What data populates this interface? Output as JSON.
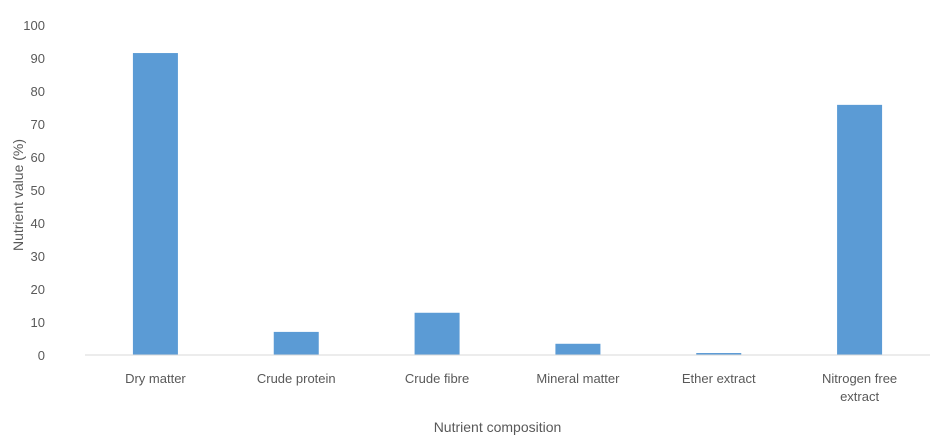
{
  "chart_data": {
    "type": "bar",
    "title": "",
    "xlabel": "Nutrient composition",
    "ylabel": "Nutrient value (%)",
    "categories": [
      [
        "Dry matter"
      ],
      [
        "Crude protein"
      ],
      [
        "Crude fibre"
      ],
      [
        "Mineral matter"
      ],
      [
        "Ether extract"
      ],
      [
        "Nitrogen free",
        "extract"
      ]
    ],
    "values": [
      91.5,
      7,
      12.8,
      3.4,
      0.6,
      75.8
    ],
    "ylim": [
      0,
      100
    ],
    "yticks": [
      0,
      10,
      20,
      30,
      40,
      50,
      60,
      70,
      80,
      90,
      100
    ],
    "grid": false,
    "legend": "none",
    "colors": {
      "bar": "#5B9BD5",
      "axis": "#D9D9D9",
      "text": "#595959"
    }
  }
}
